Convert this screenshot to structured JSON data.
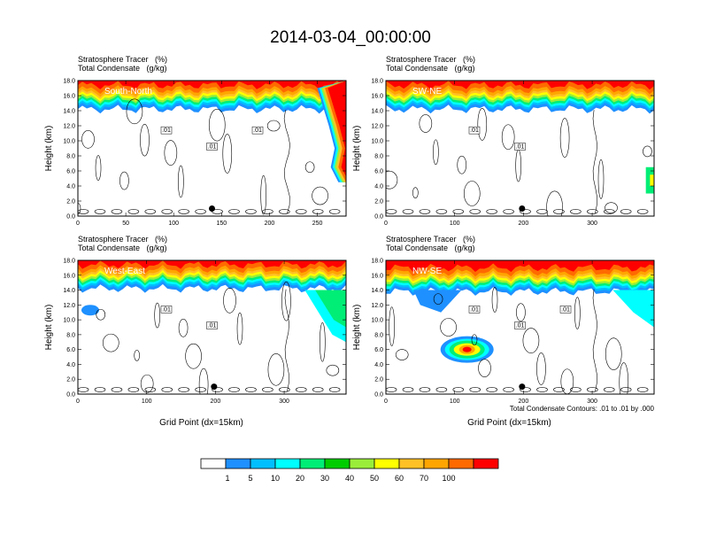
{
  "figure": {
    "title": "2014-03-04_00:00:00",
    "colorbar": {
      "colors": [
        "#ffffff",
        "#1e90ff",
        "#00bfff",
        "#00ffff",
        "#00ee76",
        "#00cd00",
        "#9aee3a",
        "#ffff00",
        "#ffc125",
        "#ffa500",
        "#ff6a00",
        "#ff0000"
      ],
      "labels": [
        "1",
        "5",
        "10",
        "20",
        "30",
        "40",
        "50",
        "60",
        "70",
        "100"
      ]
    },
    "contour_note": "Total Condensate Contours: .01 to .01 by .000"
  },
  "chart_data": [
    {
      "type": "heatmap",
      "title_line1": "Stratosphere Tracer   (%)",
      "title_line2": "Total Condensate   (g/kg)",
      "label": "South-North",
      "xlabel": "",
      "ylabel": "Height (km)",
      "xlim": [
        0,
        280
      ],
      "ylim": [
        0,
        18
      ],
      "xticks": [
        "0",
        "50",
        "100",
        "150",
        "200",
        "250"
      ],
      "yticks": [
        "0.0",
        "2.0",
        "4.0",
        "6.0",
        "8.0",
        "10.0",
        "12.0",
        "14.0",
        "16.0",
        "18.0"
      ],
      "contour_labels": [
        ".01",
        ".01",
        ".01"
      ],
      "marker_x": 140
    },
    {
      "type": "heatmap",
      "title_line1": "Stratosphere Tracer   (%)",
      "title_line2": "Total Condensate   (g/kg)",
      "label": "SW-NE",
      "xlabel": "",
      "ylabel": "Height (km)",
      "xlim": [
        0,
        390
      ],
      "ylim": [
        0,
        18
      ],
      "xticks": [
        "0",
        "100",
        "200",
        "300"
      ],
      "yticks": [
        "0.0",
        "2.0",
        "4.0",
        "6.0",
        "8.0",
        "10.0",
        "12.0",
        "14.0",
        "16.0",
        "18.0"
      ],
      "contour_labels": [
        ".01",
        ".01"
      ],
      "marker_x": 198
    },
    {
      "type": "heatmap",
      "title_line1": "Stratosphere Tracer   (%)",
      "title_line2": "Total Condensate   (g/kg)",
      "label": "West-East",
      "xlabel": "Grid Point (dx=15km)",
      "ylabel": "Height (km)",
      "xlim": [
        0,
        390
      ],
      "ylim": [
        0,
        18
      ],
      "xticks": [
        "0",
        "100",
        "200",
        "300"
      ],
      "yticks": [
        "0.0",
        "2.0",
        "4.0",
        "6.0",
        "8.0",
        "10.0",
        "12.0",
        "14.0",
        "16.0",
        "18.0"
      ],
      "contour_labels": [
        ".01",
        ".01"
      ],
      "marker_x": 198
    },
    {
      "type": "heatmap",
      "title_line1": "Stratosphere Tracer   (%)",
      "title_line2": "Total Condensate   (g/kg)",
      "label": "NW-SE",
      "xlabel": "Grid Point (dx=15km)",
      "ylabel": "Height (km)",
      "xlim": [
        0,
        390
      ],
      "ylim": [
        0,
        18
      ],
      "xticks": [
        "0",
        "100",
        "200",
        "300"
      ],
      "yticks": [
        "0.0",
        "2.0",
        "4.0",
        "6.0",
        "8.0",
        "10.0",
        "12.0",
        "14.0",
        "16.0",
        "18.0"
      ],
      "contour_labels": [
        ".01",
        ".01",
        ".01"
      ],
      "marker_x": 198
    }
  ]
}
